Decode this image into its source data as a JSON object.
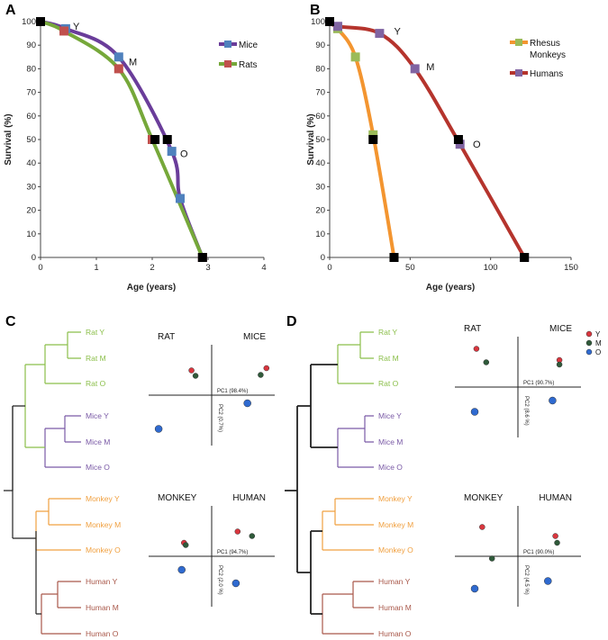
{
  "panels": {
    "A": "A",
    "B": "B",
    "C": "C",
    "D": "D"
  },
  "colors": {
    "mice": "#6a3d9a",
    "mice_marker": "#4f81bd",
    "rats": "#76a83a",
    "rats_marker": "#c0504d",
    "monkey": "#f39530",
    "monkey_marker": "#9bbb59",
    "human": "#b5342d",
    "human_marker": "#8064a2",
    "rat_tree": "#8bbf4a",
    "mice_tree": "#7a5aa6",
    "monkey_tree": "#f0a040",
    "human_tree": "#a9584a",
    "Y": "#d9363e",
    "M": "#2f5a3a",
    "O": "#2f6ad0"
  },
  "chart_data": [
    {
      "panel": "A",
      "type": "line",
      "xlabel": "Age (years)",
      "ylabel": "Survival (%)",
      "xlim": [
        0,
        4
      ],
      "ylim": [
        0,
        100
      ],
      "xticks": [
        0,
        1,
        2,
        3,
        4
      ],
      "yticks": [
        0,
        10,
        20,
        30,
        40,
        50,
        60,
        70,
        80,
        90,
        100
      ],
      "series": [
        {
          "name": "Mice",
          "color_key": "mice",
          "marker_key": "mice_marker",
          "x": [
            0,
            0.45,
            1.4,
            2.35,
            2.5,
            2.9
          ],
          "y": [
            100,
            97,
            85,
            45,
            25,
            0
          ]
        },
        {
          "name": "Rats",
          "color_key": "rats",
          "marker_key": "rats_marker",
          "x": [
            0,
            0.42,
            1.4,
            2.0,
            2.9
          ],
          "y": [
            100,
            96,
            80,
            50,
            0
          ]
        }
      ],
      "black_points": [
        {
          "x": 0,
          "y": 100
        },
        {
          "x": 2.05,
          "y": 50
        },
        {
          "x": 2.27,
          "y": 50
        },
        {
          "x": 2.9,
          "y": 0
        }
      ],
      "annotations": [
        {
          "text": "Y",
          "x": 0.58,
          "y": 98
        },
        {
          "text": "M",
          "x": 1.58,
          "y": 83
        },
        {
          "text": "O",
          "x": 2.5,
          "y": 44
        }
      ]
    },
    {
      "panel": "B",
      "type": "line",
      "xlabel": "Age (years)",
      "ylabel": "Survival (%)",
      "xlim": [
        0,
        150
      ],
      "ylim": [
        0,
        100
      ],
      "xticks": [
        0,
        50,
        100,
        150
      ],
      "yticks": [
        0,
        10,
        20,
        30,
        40,
        50,
        60,
        70,
        80,
        90,
        100
      ],
      "series": [
        {
          "name": "Rhesus Monkeys",
          "color_key": "monkey",
          "marker_key": "monkey_marker",
          "x": [
            0,
            5,
            16,
            27,
            40
          ],
          "y": [
            100,
            97,
            85,
            52,
            0
          ]
        },
        {
          "name": "Humans",
          "color_key": "human",
          "marker_key": "human_marker",
          "x": [
            0,
            5,
            31,
            53,
            81,
            121
          ],
          "y": [
            100,
            98,
            95,
            80,
            48,
            0
          ]
        }
      ],
      "black_points": [
        {
          "x": 0,
          "y": 100
        },
        {
          "x": 27,
          "y": 50
        },
        {
          "x": 80,
          "y": 50
        },
        {
          "x": 40,
          "y": 0
        },
        {
          "x": 121,
          "y": 0
        }
      ],
      "annotations": [
        {
          "text": "Y",
          "x": 40,
          "y": 96
        },
        {
          "text": "M",
          "x": 60,
          "y": 81
        },
        {
          "text": "O",
          "x": 89,
          "y": 48
        }
      ]
    },
    {
      "panel": "C",
      "type": "scatter",
      "tree_leaves": [
        "Rat Y",
        "Rat M",
        "Rat O",
        "Mice Y",
        "Mice M",
        "Mice O",
        "Monkey Y",
        "Monkey M",
        "Monkey O",
        "Human Y",
        "Human M",
        "Human O"
      ],
      "pca": [
        {
          "left_title": "RAT",
          "right_title": "MICE",
          "pc1": "PC1 (98.4%)",
          "pc2": "PC2 (0.7%)",
          "points": [
            {
              "group": "Y",
              "x": -0.35,
              "y": 0.55
            },
            {
              "group": "M",
              "x": -0.28,
              "y": 0.43
            },
            {
              "group": "Y",
              "x": 0.95,
              "y": 0.6
            },
            {
              "group": "M",
              "x": 0.85,
              "y": 0.45
            },
            {
              "group": "O",
              "x": 0.62,
              "y": -0.18
            },
            {
              "group": "O",
              "x": -0.92,
              "y": -0.75
            }
          ]
        },
        {
          "left_title": "MONKEY",
          "right_title": "HUMAN",
          "pc1": "PC1 (94.7%)",
          "pc2": "PC2 (2.0 %)",
          "points": [
            {
              "group": "Y",
              "x": 0.45,
              "y": 0.55
            },
            {
              "group": "M",
              "x": 0.7,
              "y": 0.45
            },
            {
              "group": "Y",
              "x": -0.48,
              "y": 0.3
            },
            {
              "group": "M",
              "x": -0.45,
              "y": 0.25
            },
            {
              "group": "O",
              "x": -0.52,
              "y": -0.3
            },
            {
              "group": "O",
              "x": 0.42,
              "y": -0.6
            }
          ]
        }
      ]
    },
    {
      "panel": "D",
      "type": "scatter",
      "tree_leaves": [
        "Rat Y",
        "Rat M",
        "Rat O",
        "Mice Y",
        "Mice M",
        "Mice O",
        "Monkey Y",
        "Monkey M",
        "Monkey O",
        "Human Y",
        "Human M",
        "Human O"
      ],
      "legend": [
        "Y",
        "M",
        "O"
      ],
      "pca": [
        {
          "left_title": "RAT",
          "right_title": "MICE",
          "pc1": "PC1 (90.7%)",
          "pc2": "PC2 (8.6 %)",
          "points": [
            {
              "group": "Y",
              "x": -0.72,
              "y": 0.85
            },
            {
              "group": "M",
              "x": -0.55,
              "y": 0.55
            },
            {
              "group": "Y",
              "x": 0.72,
              "y": 0.6
            },
            {
              "group": "M",
              "x": 0.72,
              "y": 0.5
            },
            {
              "group": "O",
              "x": 0.6,
              "y": -0.3
            },
            {
              "group": "O",
              "x": -0.75,
              "y": -0.55
            }
          ]
        },
        {
          "left_title": "MONKEY",
          "right_title": "HUMAN",
          "pc1": "PC1 (90.0%)",
          "pc2": "PC2 (4.5 %)",
          "points": [
            {
              "group": "Y",
              "x": -0.62,
              "y": 0.65
            },
            {
              "group": "M",
              "x": -0.45,
              "y": -0.05
            },
            {
              "group": "Y",
              "x": 0.65,
              "y": 0.45
            },
            {
              "group": "M",
              "x": 0.68,
              "y": 0.3
            },
            {
              "group": "O",
              "x": 0.52,
              "y": -0.55
            },
            {
              "group": "O",
              "x": -0.75,
              "y": -0.72
            }
          ]
        }
      ]
    }
  ]
}
